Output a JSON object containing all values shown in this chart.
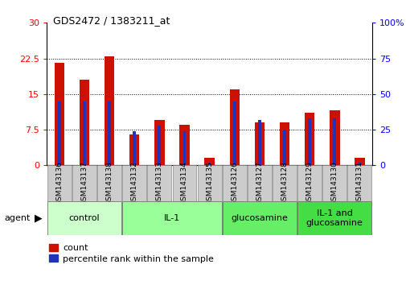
{
  "title": "GDS2472 / 1383211_at",
  "samples": [
    "GSM143136",
    "GSM143137",
    "GSM143138",
    "GSM143132",
    "GSM143133",
    "GSM143134",
    "GSM143135",
    "GSM143126",
    "GSM143127",
    "GSM143128",
    "GSM143129",
    "GSM143130",
    "GSM143131"
  ],
  "red_values": [
    21.5,
    18.0,
    23.0,
    6.5,
    9.5,
    8.5,
    1.5,
    16.0,
    9.0,
    9.0,
    11.0,
    11.5,
    1.5
  ],
  "blue_percentile": [
    45,
    45,
    45,
    24,
    28,
    24,
    2,
    45,
    32,
    25,
    33,
    33,
    2
  ],
  "groups": [
    {
      "label": "control",
      "start": 0,
      "end": 3,
      "color": "#ccffcc"
    },
    {
      "label": "IL-1",
      "start": 3,
      "end": 7,
      "color": "#99ff99"
    },
    {
      "label": "glucosamine",
      "start": 7,
      "end": 10,
      "color": "#66ee66"
    },
    {
      "label": "IL-1 and\nglucosamine",
      "start": 10,
      "end": 13,
      "color": "#44dd44"
    }
  ],
  "ylim_left": [
    0,
    30
  ],
  "ylim_right": [
    0,
    100
  ],
  "yticks_left": [
    0,
    7.5,
    15,
    22.5,
    30
  ],
  "yticks_right": [
    0,
    25,
    50,
    75,
    100
  ],
  "ytick_right_labels": [
    "0",
    "25",
    "50",
    "75",
    "100%"
  ],
  "red_bar_width": 0.4,
  "blue_bar_width": 0.12,
  "red_color": "#cc1100",
  "blue_color": "#2233bb",
  "agent_label": "agent",
  "legend_red": "count",
  "legend_blue": "percentile rank within the sample"
}
